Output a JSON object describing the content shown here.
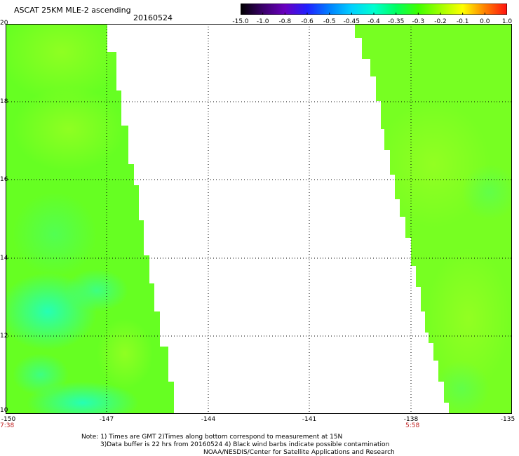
{
  "title": "ASCAT 25KM MLE-2 ascending",
  "date": "20160524",
  "colorbar": {
    "labels": [
      "-15.0",
      "-1.0",
      "-0.8",
      "-0.6",
      "-0.5",
      "-0.45",
      "-0.4",
      "-0.35",
      "-0.3",
      "-0.2",
      "-0.1",
      "0.0",
      "1.0"
    ],
    "colors": [
      "#000000",
      "#3a006a",
      "#6a00c0",
      "#2020ff",
      "#0080ff",
      "#00d0ff",
      "#00ffd0",
      "#00ff60",
      "#40ff00",
      "#a0ff00",
      "#ffff00",
      "#ff8000",
      "#ff1010"
    ]
  },
  "axes": {
    "lat_labels": [
      "20",
      "18",
      "16",
      "14",
      "12",
      "10"
    ],
    "lon_labels": [
      "-150",
      "-147",
      "-144",
      "-141",
      "-138",
      "-135"
    ],
    "lat_range": [
      10,
      20
    ],
    "lon_range": [
      -150,
      -135
    ]
  },
  "times": {
    "left": "7:38",
    "right": "5:58"
  },
  "notes": {
    "line1": "Note: 1) Times are GMT 2)Times along bottom correspond to measurement at 15N",
    "line2": "3)Data buffer is 22 hrs from 20160524 4) Black wind barbs indicate possible contamination",
    "line3": "NOAA/NESDIS/Center for Satellite Applications and Research"
  },
  "swath_colors": {
    "main": "#66ff22",
    "light": "#88ff22",
    "teal": "#22ffaa"
  }
}
